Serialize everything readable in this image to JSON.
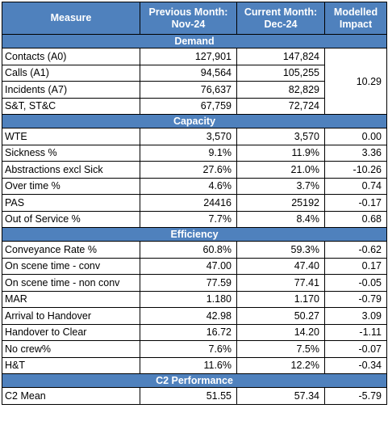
{
  "header": {
    "measure": "Measure",
    "prev_line1": "Previous Month:",
    "prev_line2": "Nov-24",
    "curr_line1": "Current Month:",
    "curr_line2": "Dec-24",
    "impact_line1": "Modelled",
    "impact_line2": "Impact"
  },
  "demand": {
    "title": "Demand",
    "merged_impact": "10.29",
    "rows": [
      {
        "label": "Contacts (A0)",
        "prev": "127,901",
        "curr": "147,824"
      },
      {
        "label": "Calls (A1)",
        "prev": "94,564",
        "curr": "105,255"
      },
      {
        "label": "Incidents (A7)",
        "prev": "76,637",
        "curr": "82,829"
      },
      {
        "label": "S&T, ST&C",
        "prev": "67,759",
        "curr": "72,724"
      }
    ]
  },
  "capacity": {
    "title": "Capacity",
    "rows": [
      {
        "label": "WTE",
        "prev": "3,570",
        "curr": "3,570",
        "impact": "0.00"
      },
      {
        "label": "Sickness %",
        "prev": "9.1%",
        "curr": "11.9%",
        "impact": "3.36"
      },
      {
        "label": "Abstractions excl Sick",
        "prev": "27.6%",
        "curr": "21.0%",
        "impact": "-10.26"
      },
      {
        "label": "Over time %",
        "prev": "4.6%",
        "curr": "3.7%",
        "impact": "0.74"
      },
      {
        "label": "PAS",
        "prev": "24416",
        "curr": "25192",
        "impact": "-0.17"
      },
      {
        "label": "Out of Service %",
        "prev": "7.7%",
        "curr": "8.4%",
        "impact": "0.68"
      }
    ]
  },
  "efficiency": {
    "title": "Efficiency",
    "rows": [
      {
        "label": "Conveyance Rate %",
        "prev": "60.8%",
        "curr": "59.3%",
        "impact": "-0.62"
      },
      {
        "label": "On scene time - conv",
        "prev": "47.00",
        "curr": "47.40",
        "impact": "0.17"
      },
      {
        "label": "On scene time - non conv",
        "prev": "77.59",
        "curr": "77.41",
        "impact": "-0.05"
      },
      {
        "label": "MAR",
        "prev": "1.180",
        "curr": "1.170",
        "impact": "-0.79"
      },
      {
        "label": "Arrival to Handover",
        "prev": "42.98",
        "curr": "50.27",
        "impact": "3.09"
      },
      {
        "label": "Handover to Clear",
        "prev": "16.72",
        "curr": "14.20",
        "impact": "-1.11"
      },
      {
        "label": "No crew%",
        "prev": "7.6%",
        "curr": "7.5%",
        "impact": "-0.07"
      },
      {
        "label": "H&T",
        "prev": "11.6%",
        "curr": "12.2%",
        "impact": "-0.34"
      }
    ]
  },
  "c2": {
    "title": "C2 Performance",
    "rows": [
      {
        "label": "C2 Mean",
        "prev": "51.55",
        "curr": "57.34",
        "impact": "-5.79"
      }
    ]
  },
  "colors": {
    "header_bg": "#4f81bd",
    "header_text": "#ffffff",
    "border": "#000000"
  }
}
